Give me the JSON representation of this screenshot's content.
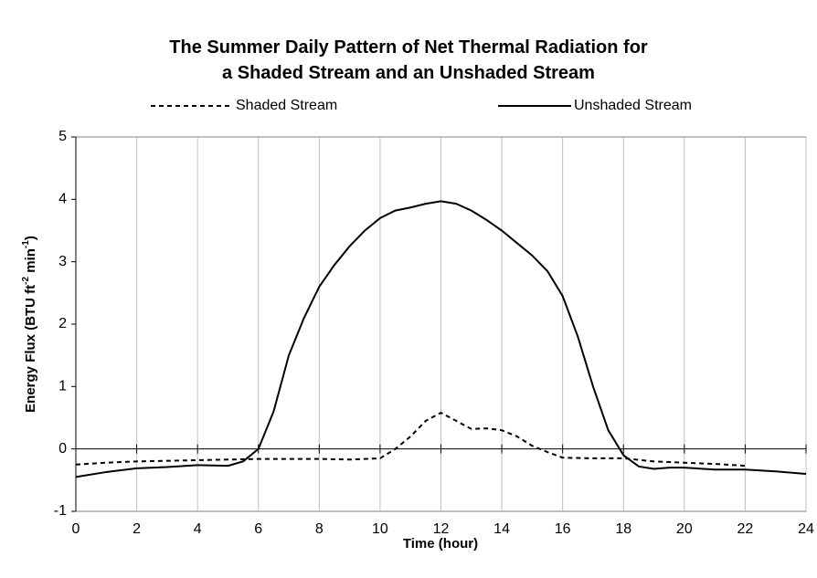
{
  "chart_data": {
    "type": "line",
    "title": [
      "The Summer Daily Pattern of Net Thermal Radiation for",
      "a Shaded Stream and an Unshaded Stream"
    ],
    "xlabel": "Time (hour)",
    "ylabel": [
      "Energy Flux (BTU ft",
      "-2",
      " min",
      "-1",
      ")"
    ],
    "xlim": [
      0,
      24
    ],
    "xticks": [
      0,
      2,
      4,
      6,
      8,
      10,
      12,
      14,
      16,
      18,
      20,
      22,
      24
    ],
    "ylim": [
      -1,
      5
    ],
    "yticks": [
      -1,
      0,
      1,
      2,
      3,
      4,
      5
    ],
    "grid": "vertical",
    "series": [
      {
        "name": "Shaded Stream",
        "color": "#000000",
        "linestyle": "dashed",
        "x": [
          0,
          1,
          2,
          3,
          4,
          5,
          6,
          7,
          8,
          9,
          10,
          10.5,
          11,
          11.5,
          12,
          12.5,
          13,
          13.5,
          14,
          14.5,
          15,
          15.5,
          16,
          17,
          18,
          19,
          20,
          21,
          22
        ],
        "values": [
          -0.25,
          -0.22,
          -0.2,
          -0.19,
          -0.18,
          -0.17,
          -0.16,
          -0.16,
          -0.16,
          -0.17,
          -0.15,
          0.0,
          0.2,
          0.45,
          0.58,
          0.45,
          0.32,
          0.33,
          0.3,
          0.2,
          0.05,
          -0.05,
          -0.14,
          -0.15,
          -0.15,
          -0.2,
          -0.22,
          -0.24,
          -0.27
        ]
      },
      {
        "name": "Unshaded Stream",
        "color": "#000000",
        "linestyle": "solid",
        "x": [
          0,
          1,
          2,
          3,
          4,
          5,
          5.5,
          6,
          6.5,
          7,
          7.5,
          8,
          8.5,
          9,
          9.5,
          10,
          10.5,
          11,
          11.5,
          12,
          12.5,
          13,
          13.5,
          14,
          14.5,
          15,
          15.5,
          16,
          16.5,
          17,
          17.5,
          18,
          18.5,
          19,
          19.5,
          20,
          21,
          22,
          23,
          24
        ],
        "values": [
          -0.45,
          -0.37,
          -0.31,
          -0.29,
          -0.26,
          -0.27,
          -0.2,
          0.0,
          0.6,
          1.5,
          2.1,
          2.6,
          2.95,
          3.25,
          3.5,
          3.7,
          3.82,
          3.87,
          3.93,
          3.97,
          3.93,
          3.82,
          3.67,
          3.5,
          3.3,
          3.1,
          2.85,
          2.45,
          1.8,
          1.0,
          0.3,
          -0.1,
          -0.28,
          -0.32,
          -0.3,
          -0.3,
          -0.33,
          -0.33,
          -0.36,
          -0.4
        ]
      }
    ]
  }
}
